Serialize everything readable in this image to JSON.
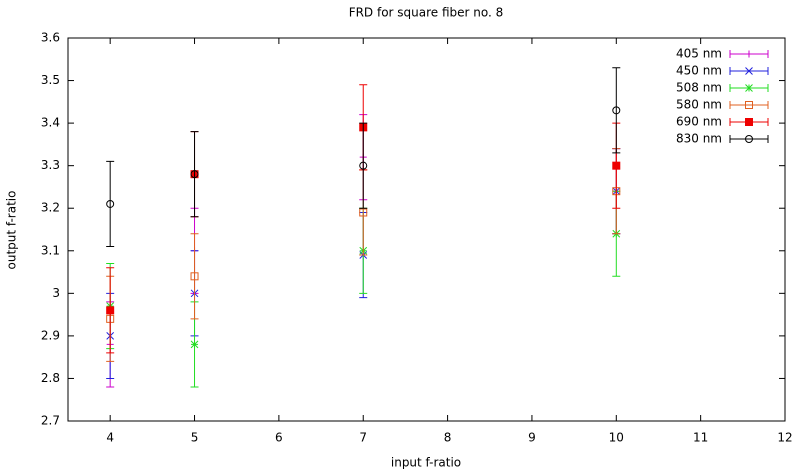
{
  "chart_data": {
    "type": "errorbar",
    "title": "FRD for square fiber no. 8",
    "x_label": "input f-ratio",
    "y_label": "output f-ratio",
    "x": [
      4,
      5,
      7,
      10
    ],
    "xlim": [
      3.5,
      12
    ],
    "xticks": [
      4,
      5,
      6,
      7,
      8,
      9,
      10,
      11,
      12
    ],
    "ylim": [
      2.7,
      3.6
    ],
    "yticks": [
      2.7,
      2.8,
      2.9,
      3,
      3.1,
      3.2,
      3.3,
      3.4,
      3.5,
      3.6
    ],
    "legend": "top-right",
    "series": [
      {
        "name": "405 nm",
        "color": "#cc00cc",
        "marker": "plus",
        "values": [
          2.88,
          3.1,
          3.32,
          3.24
        ],
        "errors": [
          0.1,
          0.1,
          0.1,
          0.1
        ]
      },
      {
        "name": "450 nm",
        "color": "#2020dd",
        "marker": "cross",
        "values": [
          2.9,
          3.0,
          3.09,
          3.24
        ],
        "errors": [
          0.1,
          0.1,
          0.1,
          0.1
        ]
      },
      {
        "name": "508 nm",
        "color": "#22dd22",
        "marker": "star",
        "values": [
          2.97,
          2.88,
          3.1,
          3.14
        ],
        "errors": [
          0.1,
          0.1,
          0.1,
          0.1
        ]
      },
      {
        "name": "580 nm",
        "color": "#e06020",
        "marker": "square",
        "values": [
          2.94,
          3.04,
          3.19,
          3.24
        ],
        "errors": [
          0.1,
          0.1,
          0.1,
          0.1
        ]
      },
      {
        "name": "690 nm",
        "color": "#ee0000",
        "marker": "filled-square",
        "values": [
          2.96,
          3.28,
          3.39,
          3.3
        ],
        "errors": [
          0.1,
          0.1,
          0.1,
          0.1
        ]
      },
      {
        "name": "830 nm",
        "color": "#000000",
        "marker": "circle",
        "values": [
          3.21,
          3.28,
          3.3,
          3.43
        ],
        "errors": [
          0.1,
          0.1,
          0.1,
          0.1
        ]
      }
    ]
  }
}
